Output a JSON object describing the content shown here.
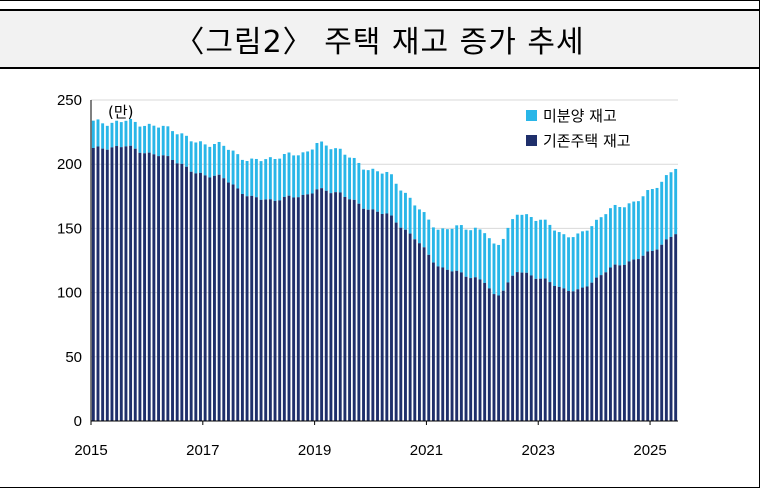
{
  "chart_data": {
    "type": "bar",
    "stacked": true,
    "title": "〈그림2〉 주택 재고 증가 추세",
    "unit_label": "(만)",
    "ylim": [
      0,
      250
    ],
    "yticks": [
      "0",
      "50",
      "100",
      "150",
      "200",
      "250"
    ],
    "xticks": [
      "2015",
      "2017",
      "2019",
      "2021",
      "2023",
      "2025"
    ],
    "grid": true,
    "legend_position": "top-right",
    "colors": {
      "unsold": "#29B6E8",
      "existing": "#1F2F6B"
    },
    "series": [
      {
        "name": "미분양 재고",
        "key": "unsold"
      },
      {
        "name": "기존주택 재고",
        "key": "existing"
      }
    ],
    "anchors": [
      {
        "x": 2015.0,
        "total": 233,
        "existing": 212
      },
      {
        "x": 2015.3,
        "total": 232,
        "existing": 213
      },
      {
        "x": 2015.6,
        "total": 234,
        "existing": 214
      },
      {
        "x": 2016.0,
        "total": 230,
        "existing": 208
      },
      {
        "x": 2016.4,
        "total": 228,
        "existing": 205
      },
      {
        "x": 2016.8,
        "total": 217,
        "existing": 193
      },
      {
        "x": 2017.3,
        "total": 215,
        "existing": 190
      },
      {
        "x": 2017.8,
        "total": 202,
        "existing": 174
      },
      {
        "x": 2018.2,
        "total": 205,
        "existing": 172
      },
      {
        "x": 2018.8,
        "total": 209,
        "existing": 176
      },
      {
        "x": 2019.0,
        "total": 216,
        "existing": 180
      },
      {
        "x": 2019.4,
        "total": 212,
        "existing": 178
      },
      {
        "x": 2019.8,
        "total": 198,
        "existing": 167
      },
      {
        "x": 2020.3,
        "total": 192,
        "existing": 160
      },
      {
        "x": 2020.8,
        "total": 166,
        "existing": 140
      },
      {
        "x": 2021.2,
        "total": 148,
        "existing": 119
      },
      {
        "x": 2021.6,
        "total": 152,
        "existing": 115
      },
      {
        "x": 2022.0,
        "total": 147,
        "existing": 108
      },
      {
        "x": 2022.2,
        "total": 135,
        "existing": 96
      },
      {
        "x": 2022.6,
        "total": 162,
        "existing": 117
      },
      {
        "x": 2023.0,
        "total": 157,
        "existing": 111
      },
      {
        "x": 2023.4,
        "total": 145,
        "existing": 103
      },
      {
        "x": 2023.7,
        "total": 144,
        "existing": 101
      },
      {
        "x": 2024.2,
        "total": 164,
        "existing": 118
      },
      {
        "x": 2024.7,
        "total": 171,
        "existing": 126
      },
      {
        "x": 2025.0,
        "total": 180,
        "existing": 132
      },
      {
        "x": 2025.4,
        "total": 197,
        "existing": 146
      }
    ]
  }
}
